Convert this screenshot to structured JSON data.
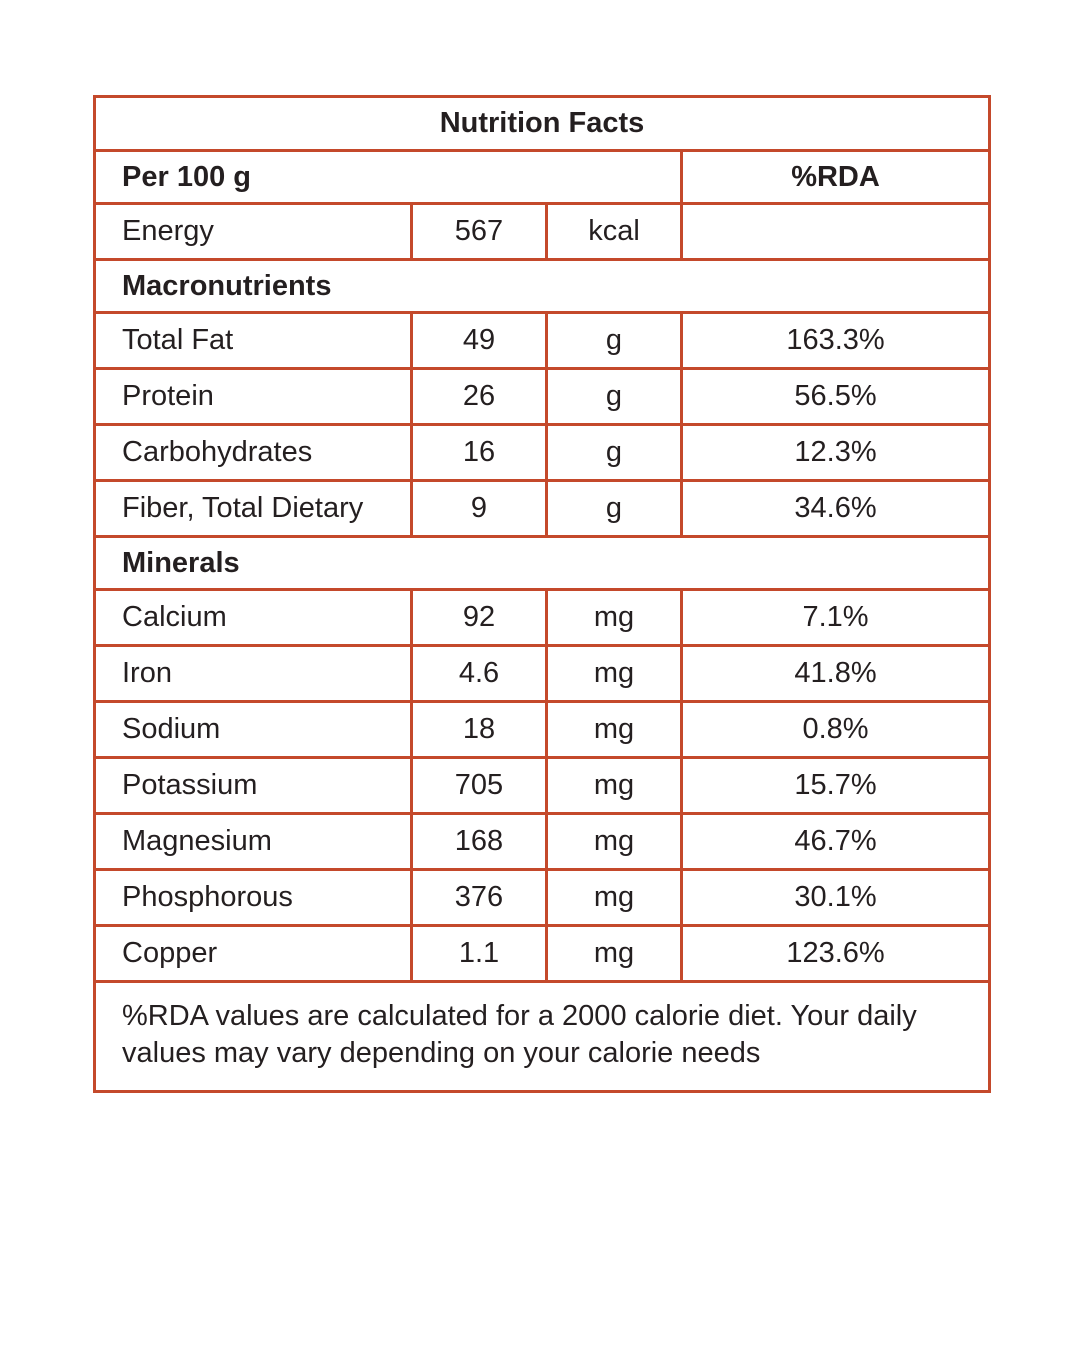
{
  "colors": {
    "border": "#c4492b",
    "text": "#241f20"
  },
  "table": {
    "title": "Nutrition Facts",
    "serving_header": "Per 100 g",
    "rda_header": "%RDA",
    "rows": [
      {
        "type": "entry",
        "label": "Energy",
        "value": "567",
        "unit": "kcal",
        "rda": ""
      },
      {
        "type": "section",
        "label": "Macronutrients"
      },
      {
        "type": "entry",
        "label": "Total Fat",
        "value": "49",
        "unit": "g",
        "rda": "163.3%"
      },
      {
        "type": "entry",
        "label": "Protein",
        "value": "26",
        "unit": "g",
        "rda": "56.5%"
      },
      {
        "type": "entry",
        "label": "Carbohydrates",
        "value": "16",
        "unit": "g",
        "rda": "12.3%"
      },
      {
        "type": "entry",
        "label": "Fiber, Total Dietary",
        "value": "9",
        "unit": "g",
        "rda": "34.6%"
      },
      {
        "type": "section",
        "label": "Minerals"
      },
      {
        "type": "entry",
        "label": "Calcium",
        "value": "92",
        "unit": "mg",
        "rda": "7.1%"
      },
      {
        "type": "entry",
        "label": "Iron",
        "value": "4.6",
        "unit": "mg",
        "rda": "41.8%"
      },
      {
        "type": "entry",
        "label": "Sodium",
        "value": "18",
        "unit": "mg",
        "rda": "0.8%"
      },
      {
        "type": "entry",
        "label": "Potassium",
        "value": "705",
        "unit": "mg",
        "rda": "15.7%"
      },
      {
        "type": "entry",
        "label": "Magnesium",
        "value": "168",
        "unit": "mg",
        "rda": "46.7%"
      },
      {
        "type": "entry",
        "label": "Phosphorous",
        "value": "376",
        "unit": "mg",
        "rda": "30.1%"
      },
      {
        "type": "entry",
        "label": "Copper",
        "value": "1.1",
        "unit": "mg",
        "rda": "123.6%"
      }
    ],
    "footnote": "%RDA values are calculated for a 2000 calorie diet. Your daily values may vary depending on your calorie needs"
  }
}
